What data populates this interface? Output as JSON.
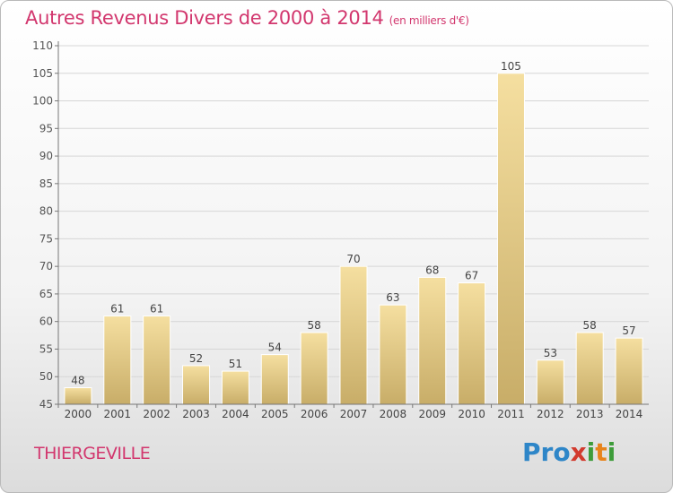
{
  "header": {
    "title": "Autres Revenus Divers de 2000 à 2014",
    "unit": "(en milliers d'€)"
  },
  "footer": {
    "city": "THIERGEVILLE",
    "logo": [
      "Pro",
      "x",
      "i",
      "t",
      "i"
    ]
  },
  "colors": {
    "title": "#d2376e",
    "bar_light": "#f5dfa0",
    "bar_dark": "#c8ad68"
  },
  "chart_data": {
    "type": "bar",
    "title": "Autres Revenus Divers de 2000 à 2014",
    "subtitle": "(en milliers d'€)",
    "categories": [
      "2000",
      "2001",
      "2002",
      "2003",
      "2004",
      "2005",
      "2006",
      "2007",
      "2008",
      "2009",
      "2010",
      "2011",
      "2012",
      "2013",
      "2014"
    ],
    "values": [
      48,
      61,
      61,
      52,
      51,
      54,
      58,
      70,
      63,
      68,
      67,
      105,
      53,
      58,
      57
    ],
    "ylim": [
      45,
      110
    ],
    "yticks": [
      45,
      50,
      55,
      60,
      65,
      70,
      75,
      80,
      85,
      90,
      95,
      100,
      105,
      110
    ],
    "data_labels": true,
    "legend": "none"
  }
}
